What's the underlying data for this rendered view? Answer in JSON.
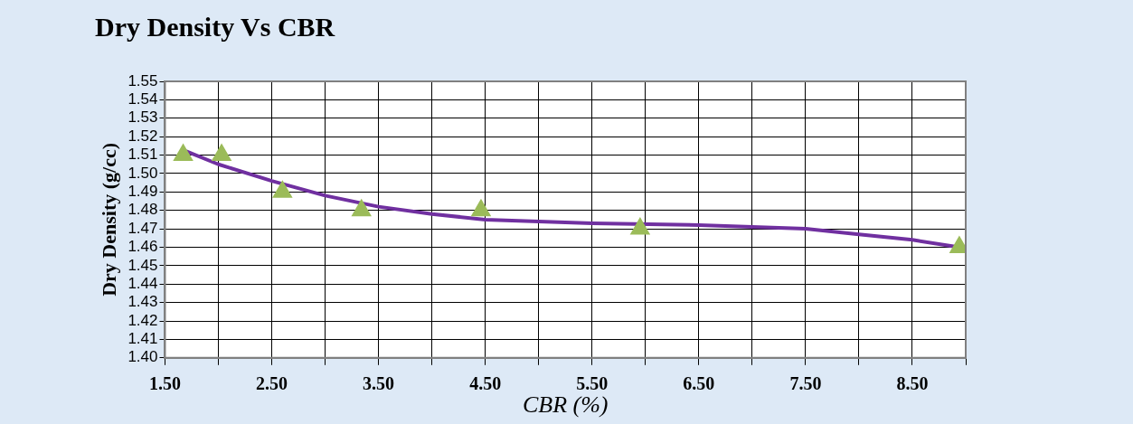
{
  "chart_data": {
    "type": "scatter",
    "title": "Dry Density Vs CBR",
    "xlabel": "CBR (%)",
    "ylabel": "Dry Density (g/cc)",
    "xlim": [
      1.5,
      9.0
    ],
    "xticks": [
      {
        "value": 1.5,
        "label": "1.50"
      },
      {
        "value": 2.0,
        "label": null
      },
      {
        "value": 2.5,
        "label": "2.50"
      },
      {
        "value": 3.0,
        "label": null
      },
      {
        "value": 3.5,
        "label": "3.50"
      },
      {
        "value": 4.0,
        "label": null
      },
      {
        "value": 4.5,
        "label": "4.50"
      },
      {
        "value": 5.0,
        "label": null
      },
      {
        "value": 5.5,
        "label": "5.50"
      },
      {
        "value": 6.0,
        "label": null
      },
      {
        "value": 6.5,
        "label": "6.50"
      },
      {
        "value": 7.0,
        "label": null
      },
      {
        "value": 7.5,
        "label": "7.50"
      },
      {
        "value": 8.0,
        "label": null
      },
      {
        "value": 8.5,
        "label": "8.50"
      },
      {
        "value": 9.0,
        "label": null
      }
    ],
    "ylim": [
      1.4,
      1.55
    ],
    "yticks": [
      {
        "value": 1.4,
        "label": "1.40"
      },
      1.41,
      1.42,
      1.43,
      1.44,
      1.45,
      1.46,
      1.47,
      1.48,
      1.49,
      {
        "value": 1.5,
        "label": "1.50"
      },
      1.51,
      1.52,
      1.53,
      1.54,
      1.55
    ],
    "grid": true,
    "legend": false,
    "series": [
      {
        "type": "scatter",
        "marker": "triangle",
        "color": "#9bbb59",
        "x": [
          1.67,
          2.03,
          2.6,
          3.34,
          4.46,
          5.95,
          8.94
        ],
        "values": [
          1.51,
          1.51,
          1.49,
          1.48,
          1.48,
          1.47,
          1.46
        ]
      },
      {
        "type": "line",
        "marker": "none",
        "color": "#7030a0",
        "x": [
          1.7,
          2.0,
          2.5,
          3.0,
          3.5,
          4.0,
          4.5,
          5.0,
          5.5,
          6.5,
          7.5,
          8.0,
          8.5,
          8.94
        ],
        "values": [
          1.512,
          1.505,
          1.496,
          1.488,
          1.482,
          1.478,
          1.475,
          1.474,
          1.473,
          1.472,
          1.47,
          1.467,
          1.464,
          1.46
        ]
      }
    ]
  }
}
